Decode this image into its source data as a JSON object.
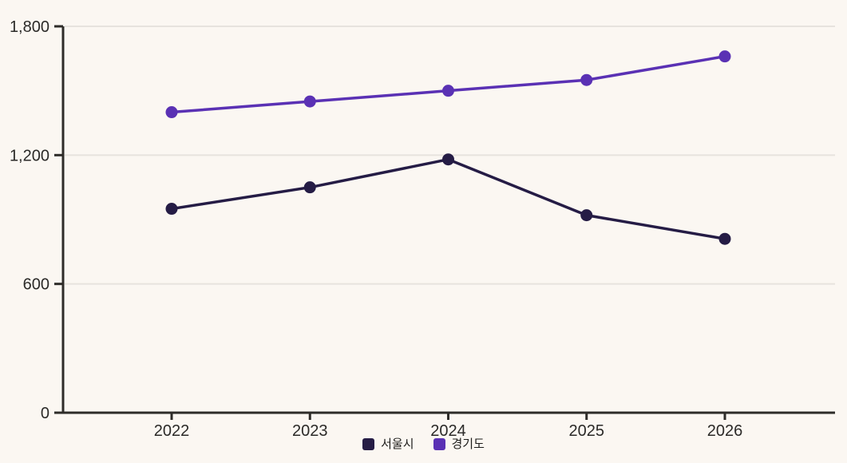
{
  "chart_data": {
    "type": "line",
    "x": [
      "2022",
      "2023",
      "2024",
      "2025",
      "2026"
    ],
    "series": [
      {
        "name": "서울시",
        "color": "#251C45",
        "values": [
          950,
          1050,
          1180,
          920,
          810
        ]
      },
      {
        "name": "경기도",
        "color": "#5A31B4",
        "values": [
          1400,
          1450,
          1500,
          1550,
          1660
        ]
      }
    ],
    "title": "",
    "xlabel": "",
    "ylabel": "",
    "ylim": [
      0,
      1800
    ],
    "yticks": [
      0,
      600,
      1200,
      1800
    ],
    "ytick_labels": [
      "0",
      "600",
      "1,200",
      "1,800"
    ],
    "grid": true,
    "legend_position": "bottom"
  },
  "style": {
    "background": "#FBF7F2",
    "grid_color": "#E7E3DE",
    "axis_color": "#2E2C29",
    "tick_text_color": "#2B2A28",
    "marker_radius": 7.5,
    "line_width": 3.5
  }
}
